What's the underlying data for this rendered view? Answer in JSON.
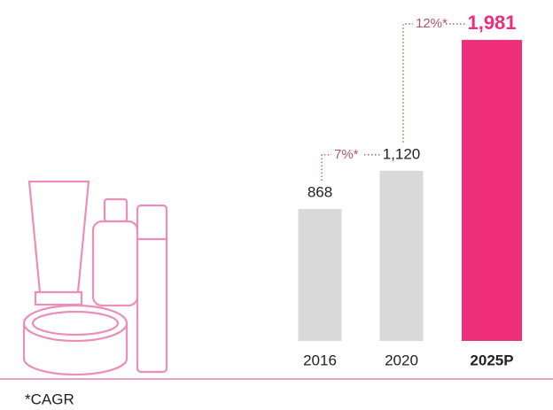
{
  "chart_data": {
    "type": "bar",
    "categories": [
      "2016",
      "2020",
      "2025P"
    ],
    "values": [
      868,
      1120,
      1981
    ],
    "value_labels": [
      "868",
      "1,120",
      "1,981"
    ],
    "bar_colors": [
      "#d9d9d9",
      "#d9d9d9",
      "#ee2e7b"
    ],
    "highlight": 2,
    "annotations": [
      "7%*",
      "12%*"
    ],
    "footnote": "*CAGR"
  }
}
